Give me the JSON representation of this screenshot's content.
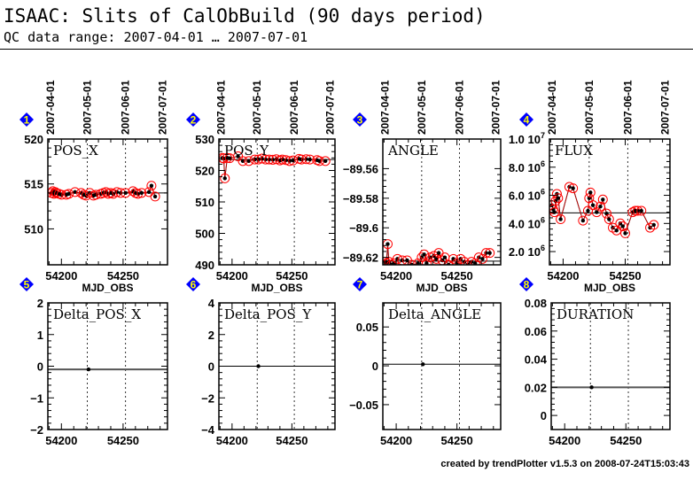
{
  "header": {
    "title": "ISAAC: Slits of CalObBuild (90 days period)",
    "subtitle": "QC data range: 2007-04-01 … 2007-07-01"
  },
  "footer": "created by trendPlotter v1.5.3 on 2008-07-24T15:03:43",
  "colors": {
    "badge": "#0000ff",
    "badge_text": "#ffff00",
    "point": "#000000",
    "circle": "#ff0000",
    "median": "#000000"
  },
  "date_labels": [
    {
      "mjd": 54191,
      "label": "2007-04-01"
    },
    {
      "mjd": 54221,
      "label": "2007-05-01"
    },
    {
      "mjd": 54252,
      "label": "2007-06-01"
    },
    {
      "mjd": 54282,
      "label": "2007-07-01"
    }
  ],
  "chart_data": [
    {
      "id": 1,
      "type": "scatter",
      "title": "POS_X",
      "xlabel": "MJD_OBS",
      "xlim": [
        54189,
        54286
      ],
      "xticks": [
        54200,
        54250
      ],
      "ylim": [
        506,
        520
      ],
      "yticks": [
        {
          "v": 510,
          "label": "510"
        },
        {
          "v": 515,
          "label": "515"
        },
        {
          "v": 520,
          "label": "520"
        }
      ],
      "median": 514.0,
      "circles": true,
      "x": [
        54192,
        54193,
        54194,
        54195,
        54196,
        54198,
        54200,
        54204,
        54206,
        54211,
        54216,
        54218,
        54220,
        54223,
        54226,
        54228,
        54232,
        54234,
        54236,
        54238,
        54240,
        54242,
        54245,
        54248,
        54252,
        54258,
        54260,
        54262,
        54265,
        54271,
        54273,
        54276
      ],
      "y": [
        514.0,
        514.2,
        513.9,
        514.1,
        514.0,
        513.9,
        513.8,
        513.8,
        513.9,
        514.1,
        514.0,
        513.8,
        513.7,
        514.0,
        513.7,
        513.8,
        513.9,
        514.0,
        514.1,
        513.9,
        514.0,
        513.9,
        514.1,
        514.0,
        514.0,
        514.2,
        514.0,
        513.9,
        514.0,
        514.1,
        514.8,
        513.6
      ]
    },
    {
      "id": 2,
      "type": "scatter",
      "title": "POS_Y",
      "xlabel": "MJD_OBS",
      "xlim": [
        54189,
        54286
      ],
      "xticks": [
        54200,
        54250
      ],
      "ylim": [
        490,
        530
      ],
      "yticks": [
        {
          "v": 490,
          "label": "490"
        },
        {
          "v": 500,
          "label": "500"
        },
        {
          "v": 510,
          "label": "510"
        },
        {
          "v": 520,
          "label": "520"
        },
        {
          "v": 530,
          "label": "530"
        }
      ],
      "median": 523.5,
      "circles": true,
      "x": [
        54192,
        54193,
        54194,
        54196,
        54198,
        54205,
        54209,
        54214,
        54219,
        54222,
        54225,
        54228,
        54231,
        54234,
        54237,
        54240,
        54242,
        54245,
        54248,
        54251,
        54256,
        54258,
        54262,
        54265,
        54271,
        54273,
        54278
      ],
      "y": [
        524.0,
        523.8,
        517.5,
        524.0,
        523.9,
        524.5,
        523.0,
        523.0,
        523.5,
        523.5,
        523.8,
        523.5,
        523.5,
        523.4,
        523.6,
        523.2,
        523.5,
        523.3,
        523.0,
        523.2,
        523.7,
        523.5,
        523.6,
        523.5,
        523.3,
        523.0,
        523.0
      ]
    },
    {
      "id": 3,
      "type": "scatter",
      "title": "ANGLE",
      "xlabel": "MJD_OBS",
      "xlim": [
        54189,
        54286
      ],
      "xticks": [
        54200,
        54250
      ],
      "ylim": [
        -89.625,
        -89.54
      ],
      "yticks": [
        {
          "v": -89.62,
          "label": "-89.62"
        },
        {
          "v": -89.6,
          "label": "-89.6"
        },
        {
          "v": -89.58,
          "label": "-89.58"
        },
        {
          "v": -89.56,
          "label": "-89.56"
        }
      ],
      "median": -89.6225,
      "circles": true,
      "x": [
        54191,
        54192,
        54193,
        54194,
        54196,
        54198,
        54201,
        54205,
        54209,
        54213,
        54218,
        54221,
        54223,
        54225,
        54228,
        54231,
        54233,
        54235,
        54238,
        54240,
        54243,
        54247,
        54250,
        54253,
        54256,
        54259,
        54262,
        54265,
        54268,
        54271,
        54274,
        54277
      ],
      "y": [
        -89.623,
        -89.624,
        -89.611,
        -89.623,
        -89.625,
        -89.624,
        -89.621,
        -89.622,
        -89.622,
        -89.625,
        -89.624,
        -89.62,
        -89.618,
        -89.624,
        -89.62,
        -89.619,
        -89.621,
        -89.617,
        -89.622,
        -89.62,
        -89.625,
        -89.621,
        -89.624,
        -89.621,
        -89.623,
        -89.625,
        -89.623,
        -89.624,
        -89.62,
        -89.621,
        -89.617,
        -89.617
      ]
    },
    {
      "id": 4,
      "type": "line",
      "title": "FLUX",
      "xlabel": "MJD_OBS",
      "xlim": [
        54189,
        54286
      ],
      "xticks": [
        54200,
        54250
      ],
      "ylim": [
        1060000,
        10000000
      ],
      "yticks": [
        {
          "v": 2000000,
          "label": "2.0",
          "exp": "6"
        },
        {
          "v": 4000000,
          "label": "4.0",
          "exp": "6"
        },
        {
          "v": 6000000,
          "label": "6.0",
          "exp": "6"
        },
        {
          "v": 8000000,
          "label": "8.0",
          "exp": "6"
        },
        {
          "v": 10000000,
          "label": "1.0",
          "exp": "7"
        }
      ],
      "median": 4750000,
      "circles": true,
      "x": [
        54191,
        54192,
        54193,
        54194,
        54195,
        54196,
        54198,
        54205,
        54208,
        54216,
        54220,
        54221,
        54222,
        54224,
        54227,
        54230,
        54232,
        54235,
        54237,
        54240,
        54243,
        54246,
        54248,
        54250,
        54256,
        54258,
        54260,
        54263,
        54270,
        54273
      ],
      "y": [
        5300000,
        5000000,
        4800000,
        5600000,
        6100000,
        5800000,
        4300000,
        6600000,
        6500000,
        4200000,
        4900000,
        5800000,
        6200000,
        5300000,
        4800000,
        5200000,
        5700000,
        4700000,
        4300000,
        3700000,
        3500000,
        4000000,
        3800000,
        3300000,
        4800000,
        4900000,
        4900000,
        4900000,
        3700000,
        3900000
      ]
    },
    {
      "id": 5,
      "type": "scatter",
      "title": "Delta_POS_X",
      "xlabel": "",
      "xlim": [
        54189,
        54286
      ],
      "xticks": [
        54200,
        54250
      ],
      "ylim": [
        -2,
        2
      ],
      "yticks": [
        {
          "v": -2,
          "label": "-2"
        },
        {
          "v": -1,
          "label": "-1"
        },
        {
          "v": 0,
          "label": "0"
        },
        {
          "v": 1,
          "label": "1"
        },
        {
          "v": 2,
          "label": "2"
        }
      ],
      "median": -0.1,
      "circles": false,
      "x": [
        54222
      ],
      "y": [
        -0.1
      ]
    },
    {
      "id": 6,
      "type": "scatter",
      "title": "Delta_POS_Y",
      "xlabel": "",
      "xlim": [
        54189,
        54286
      ],
      "xticks": [
        54200,
        54250
      ],
      "ylim": [
        -4,
        4
      ],
      "yticks": [
        {
          "v": -4,
          "label": "-4"
        },
        {
          "v": -2,
          "label": "-2"
        },
        {
          "v": 0,
          "label": "0"
        },
        {
          "v": 2,
          "label": "2"
        },
        {
          "v": 4,
          "label": "4"
        }
      ],
      "median": 0,
      "circles": false,
      "x": [
        54222
      ],
      "y": [
        0
      ]
    },
    {
      "id": 7,
      "type": "scatter",
      "title": "Delta_ANGLE",
      "xlabel": "",
      "xlim": [
        54189,
        54286
      ],
      "xticks": [
        54200,
        54250
      ],
      "ylim": [
        -0.082,
        0.081
      ],
      "yticks": [
        {
          "v": -0.05,
          "label": "-0.05"
        },
        {
          "v": 0,
          "label": "0"
        },
        {
          "v": 0.05,
          "label": "0.05"
        }
      ],
      "median": 0.002,
      "circles": false,
      "x": [
        54222
      ],
      "y": [
        0.002
      ]
    },
    {
      "id": 8,
      "type": "scatter",
      "title": "DURATION",
      "xlabel": "",
      "xlim": [
        54189,
        54286
      ],
      "xticks": [
        54200,
        54250
      ],
      "ylim": [
        -0.01,
        0.08
      ],
      "yticks": [
        {
          "v": 0,
          "label": "0"
        },
        {
          "v": 0.02,
          "label": "0.02"
        },
        {
          "v": 0.04,
          "label": "0.04"
        },
        {
          "v": 0.06,
          "label": "0.06"
        },
        {
          "v": 0.08,
          "label": "0.08"
        }
      ],
      "median": 0.02,
      "circles": false,
      "x": [
        54222
      ],
      "y": [
        0.02
      ]
    }
  ]
}
